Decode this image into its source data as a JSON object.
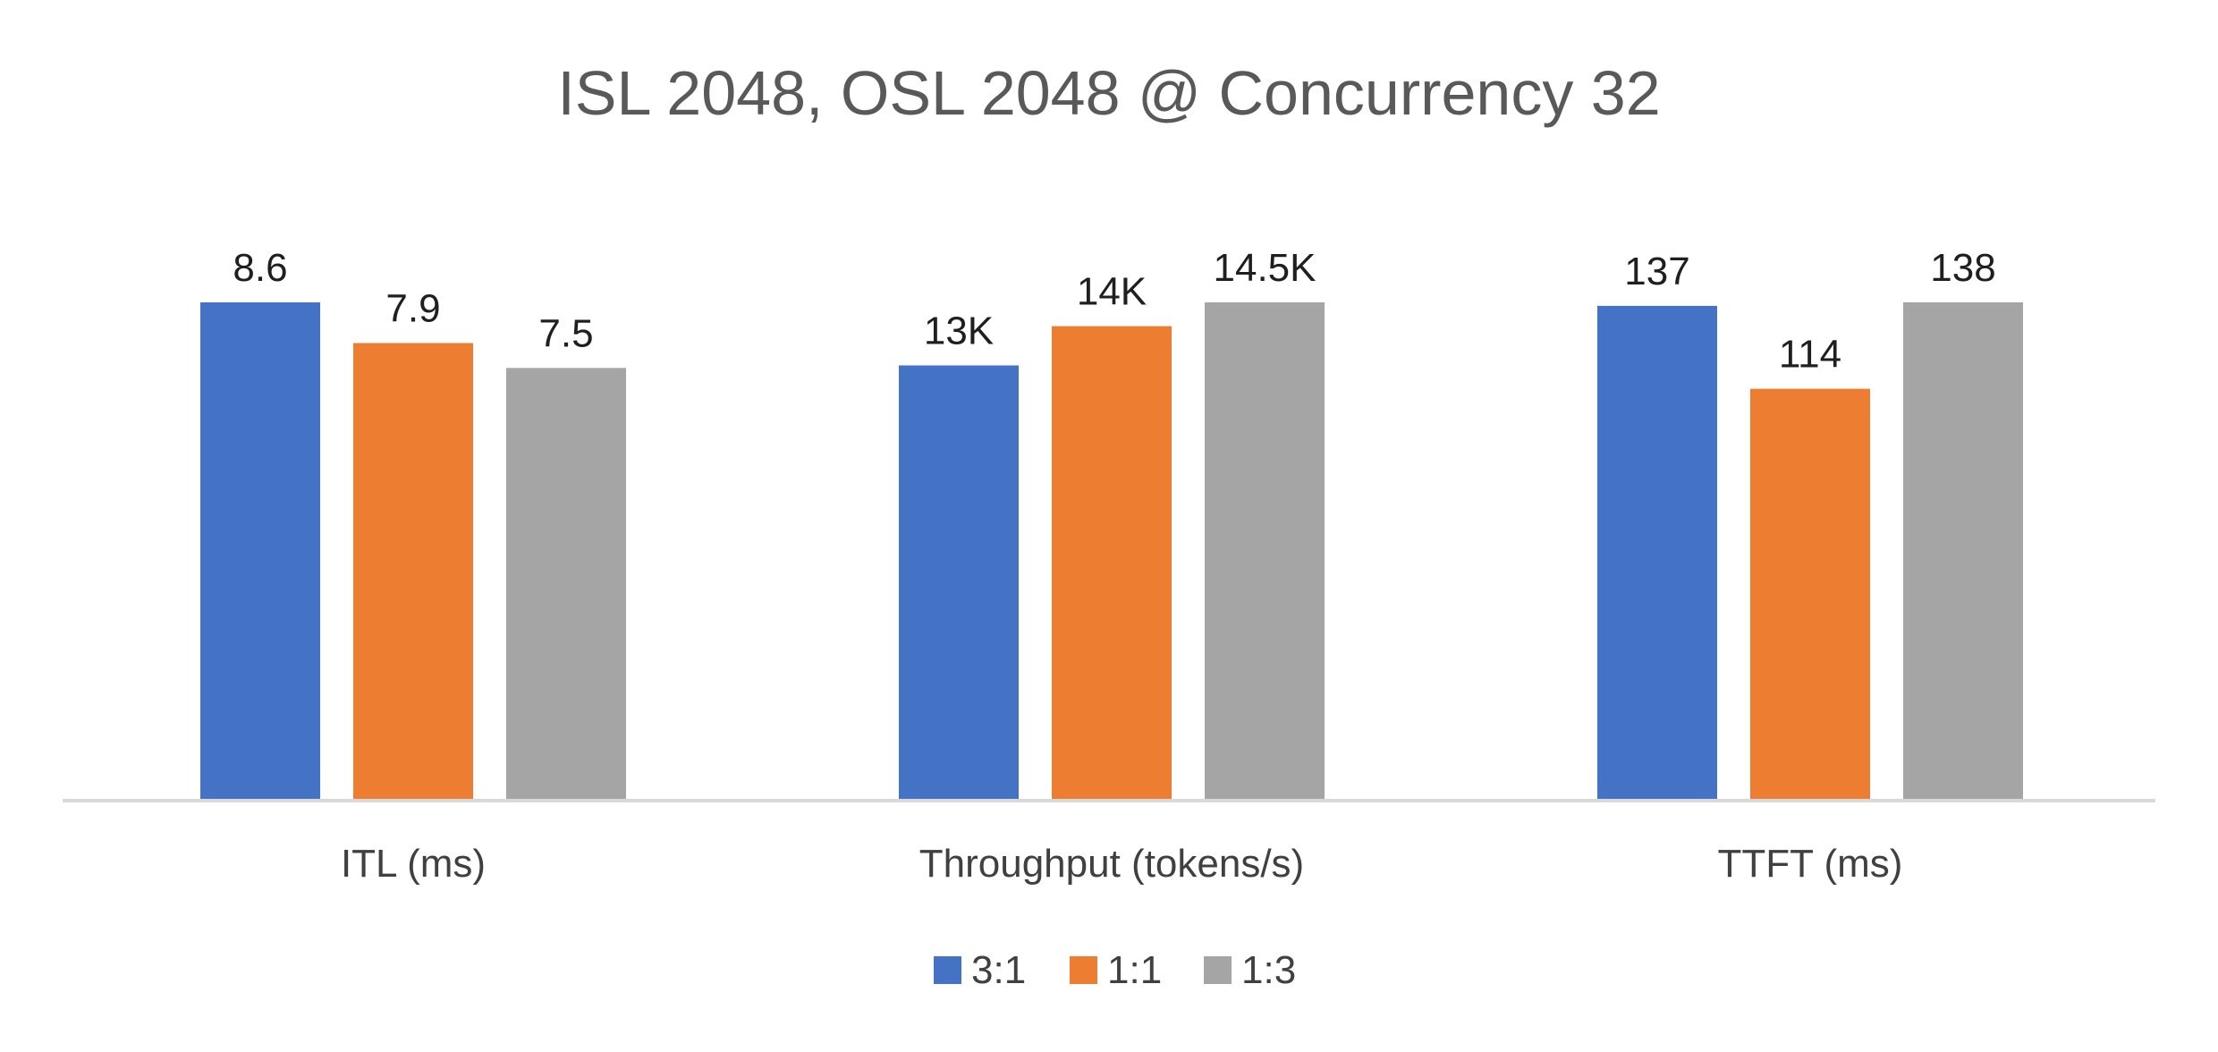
{
  "chart_data": {
    "type": "bar",
    "title": "ISL 2048, OSL 2048 @ Concurrency 32",
    "categories": [
      "ITL (ms)",
      "Throughput (tokens/s)",
      "TTFT (ms)"
    ],
    "series": [
      {
        "name": "3:1",
        "color": "#4472c4",
        "values": [
          8.6,
          13000,
          137
        ],
        "labels": [
          "8.6",
          "13K",
          "137"
        ],
        "relative_height": [
          1.0,
          0.873,
          0.993
        ]
      },
      {
        "name": "1:1",
        "color": "#ed7d31",
        "values": [
          7.9,
          14000,
          114
        ],
        "labels": [
          "7.9",
          "14K",
          "114"
        ],
        "relative_height": [
          0.918,
          0.952,
          0.826
        ]
      },
      {
        "name": "1:3",
        "color": "#a5a5a5",
        "values": [
          7.5,
          14500,
          138
        ],
        "labels": [
          "7.5",
          "14.5K",
          "138"
        ],
        "relative_height": [
          0.868,
          1.0,
          1.0
        ]
      }
    ],
    "legend_position": "bottom",
    "grid": false,
    "axis_line_color": "#d9d9d9"
  }
}
